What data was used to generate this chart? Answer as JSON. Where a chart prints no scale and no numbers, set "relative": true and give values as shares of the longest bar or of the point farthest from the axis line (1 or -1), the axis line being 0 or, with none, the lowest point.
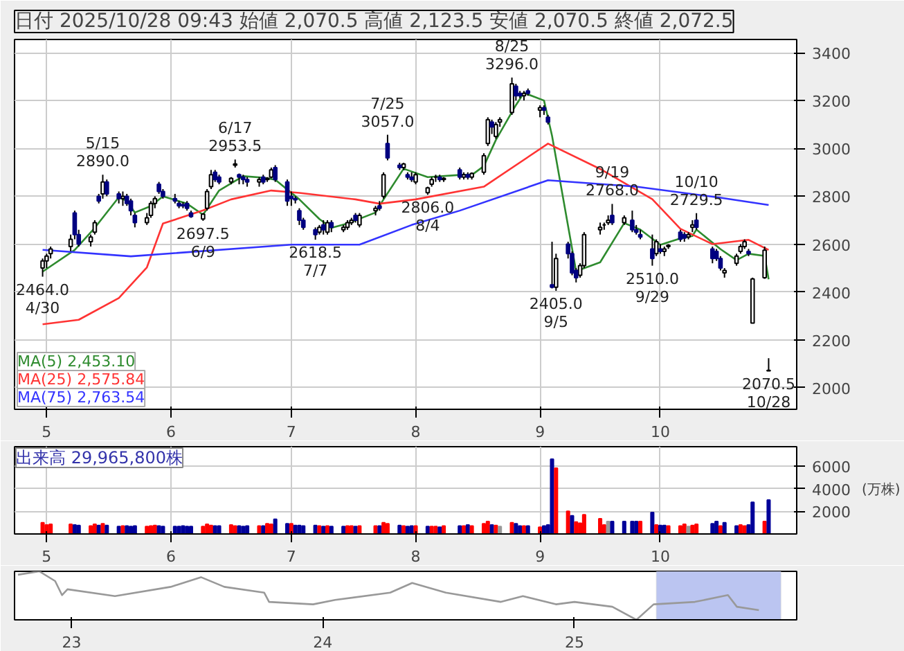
{
  "chart_data": [
    {
      "type": "candlestick",
      "title": "日付 2025/10/28 09:43 始値 2,070.5 高値 2,123.5 安値 2,070.5 終値 2,072.5",
      "x": [
        "2025-04-30",
        "2025-05-01",
        "2025-05-02",
        "2025-05-07",
        "2025-05-08",
        "2025-05-09",
        "2025-05-12",
        "2025-05-13",
        "2025-05-14",
        "2025-05-15",
        "2025-05-16",
        "2025-05-19",
        "2025-05-20",
        "2025-05-21",
        "2025-05-22",
        "2025-05-23",
        "2025-05-26",
        "2025-05-27",
        "2025-05-28",
        "2025-05-29",
        "2025-05-30",
        "2025-06-02",
        "2025-06-03",
        "2025-06-04",
        "2025-06-05",
        "2025-06-06",
        "2025-06-09",
        "2025-06-10",
        "2025-06-11",
        "2025-06-12",
        "2025-06-13",
        "2025-06-16",
        "2025-06-17",
        "2025-06-18",
        "2025-06-19",
        "2025-06-20",
        "2025-06-23",
        "2025-06-24",
        "2025-06-25",
        "2025-06-26",
        "2025-06-27",
        "2025-06-30",
        "2025-07-01",
        "2025-07-02",
        "2025-07-03",
        "2025-07-04",
        "2025-07-07",
        "2025-07-08",
        "2025-07-09",
        "2025-07-10",
        "2025-07-11",
        "2025-07-14",
        "2025-07-15",
        "2025-07-16",
        "2025-07-17",
        "2025-07-18",
        "2025-07-22",
        "2025-07-23",
        "2025-07-24",
        "2025-07-25",
        "2025-07-28",
        "2025-07-29",
        "2025-07-30",
        "2025-07-31",
        "2025-08-01",
        "2025-08-04",
        "2025-08-05",
        "2025-08-06",
        "2025-08-07",
        "2025-08-08",
        "2025-08-12",
        "2025-08-13",
        "2025-08-14",
        "2025-08-15",
        "2025-08-18",
        "2025-08-19",
        "2025-08-20",
        "2025-08-21",
        "2025-08-22",
        "2025-08-25",
        "2025-08-26",
        "2025-08-27",
        "2025-08-28",
        "2025-08-29",
        "2025-09-01",
        "2025-09-02",
        "2025-09-03",
        "2025-09-04",
        "2025-09-05",
        "2025-09-08",
        "2025-09-09",
        "2025-09-10",
        "2025-09-11",
        "2025-09-12",
        "2025-09-16",
        "2025-09-17",
        "2025-09-18",
        "2025-09-19",
        "2025-09-22",
        "2025-09-24",
        "2025-09-25",
        "2025-09-26",
        "2025-09-29",
        "2025-09-30",
        "2025-10-01",
        "2025-10-02",
        "2025-10-03",
        "2025-10-06",
        "2025-10-07",
        "2025-10-08",
        "2025-10-09",
        "2025-10-10",
        "2025-10-14",
        "2025-10-15",
        "2025-10-16",
        "2025-10-17",
        "2025-10-20",
        "2025-10-21",
        "2025-10-22",
        "2025-10-23",
        "2025-10-24",
        "2025-10-27",
        "2025-10-28"
      ],
      "ohlc": [
        [
          2500,
          2540,
          2464,
          2530
        ],
        [
          2530,
          2560,
          2500,
          2550
        ],
        [
          2560,
          2590,
          2540,
          2580
        ],
        [
          2590,
          2640,
          2570,
          2620
        ],
        [
          2730,
          2740,
          2620,
          2640
        ],
        [
          2640,
          2660,
          2590,
          2600
        ],
        [
          2610,
          2640,
          2590,
          2630
        ],
        [
          2650,
          2700,
          2640,
          2690
        ],
        [
          2800,
          2810,
          2770,
          2780
        ],
        [
          2810,
          2890,
          2790,
          2860
        ],
        [
          2860,
          2870,
          2800,
          2810
        ],
        [
          2810,
          2820,
          2770,
          2790
        ],
        [
          2790,
          2820,
          2760,
          2800
        ],
        [
          2800,
          2810,
          2760,
          2770
        ],
        [
          2780,
          2790,
          2720,
          2740
        ],
        [
          2720,
          2730,
          2670,
          2690
        ],
        [
          2690,
          2730,
          2680,
          2710
        ],
        [
          2720,
          2780,
          2710,
          2770
        ],
        [
          2770,
          2800,
          2750,
          2790
        ],
        [
          2850,
          2860,
          2810,
          2820
        ],
        [
          2820,
          2830,
          2790,
          2800
        ],
        [
          2790,
          2810,
          2770,
          2780
        ],
        [
          2770,
          2780,
          2750,
          2760
        ],
        [
          2765,
          2775,
          2750,
          2760
        ],
        [
          2770,
          2780,
          2740,
          2750
        ],
        [
          2730,
          2740,
          2710,
          2715
        ],
        [
          2705,
          2730,
          2697.5,
          2725
        ],
        [
          2750,
          2830,
          2740,
          2820
        ],
        [
          2840,
          2910,
          2830,
          2890
        ],
        [
          2900,
          2910,
          2860,
          2870
        ],
        [
          2880,
          2890,
          2850,
          2860
        ],
        [
          2860,
          2880,
          2850,
          2875
        ],
        [
          2930,
          2953.5,
          2920,
          2935
        ],
        [
          2890,
          2895,
          2850,
          2880
        ],
        [
          2880,
          2890,
          2850,
          2870
        ],
        [
          2870,
          2880,
          2840,
          2860
        ],
        [
          2860,
          2880,
          2840,
          2870
        ],
        [
          2880,
          2890,
          2850,
          2860
        ],
        [
          2870,
          2880,
          2860,
          2875
        ],
        [
          2880,
          2920,
          2875,
          2910
        ],
        [
          2920,
          2930,
          2860,
          2870
        ],
        [
          2860,
          2870,
          2760,
          2780
        ],
        [
          2800,
          2820,
          2760,
          2790
        ],
        [
          2790,
          2800,
          2770,
          2785
        ],
        [
          2740,
          2750,
          2680,
          2700
        ],
        [
          2700,
          2710,
          2660,
          2670
        ],
        [
          2660,
          2670,
          2618.5,
          2640
        ],
        [
          2650,
          2680,
          2640,
          2670
        ],
        [
          2680,
          2700,
          2640,
          2660
        ],
        [
          2650,
          2700,
          2640,
          2690
        ],
        [
          2690,
          2700,
          2650,
          2670
        ],
        [
          2660,
          2680,
          2650,
          2670
        ],
        [
          2670,
          2700,
          2660,
          2690
        ],
        [
          2690,
          2710,
          2680,
          2700
        ],
        [
          2720,
          2730,
          2690,
          2700
        ],
        [
          2680,
          2730,
          2670,
          2720
        ],
        [
          2740,
          2760,
          2720,
          2750
        ],
        [
          2760,
          2780,
          2740,
          2750
        ],
        [
          2800,
          2900,
          2790,
          2890
        ],
        [
          3020,
          3057,
          2950,
          2960
        ],
        [
          2930,
          2940,
          2910,
          2920
        ],
        [
          2920,
          2940,
          2910,
          2935
        ],
        [
          2890,
          2900,
          2870,
          2880
        ],
        [
          2880,
          2900,
          2860,
          2870
        ],
        [
          2860,
          2900,
          2850,
          2890
        ],
        [
          2815,
          2840,
          2806,
          2835
        ],
        [
          2850,
          2880,
          2840,
          2870
        ],
        [
          2880,
          2890,
          2860,
          2880
        ],
        [
          2880,
          2890,
          2860,
          2870
        ],
        [
          2870,
          2880,
          2860,
          2875
        ],
        [
          2910,
          2920,
          2870,
          2880
        ],
        [
          2880,
          2900,
          2870,
          2890
        ],
        [
          2890,
          2900,
          2870,
          2880
        ],
        [
          2880,
          2900,
          2870,
          2895
        ],
        [
          2900,
          2980,
          2890,
          2970
        ],
        [
          3020,
          3130,
          3010,
          3120
        ],
        [
          3110,
          3120,
          3060,
          3090
        ],
        [
          3050,
          3110,
          3040,
          3100
        ],
        [
          3110,
          3130,
          3090,
          3120
        ],
        [
          3150,
          3296,
          3140,
          3270
        ],
        [
          3260,
          3270,
          3200,
          3220
        ],
        [
          3230,
          3240,
          3210,
          3220
        ],
        [
          3220,
          3240,
          3200,
          3230
        ],
        [
          3240,
          3250,
          3220,
          3230
        ],
        [
          3160,
          3180,
          3130,
          3170
        ],
        [
          3170,
          3180,
          3140,
          3160
        ],
        [
          3130,
          3140,
          3100,
          3110
        ],
        [
          2430,
          2610,
          2415,
          2420
        ],
        [
          2420,
          2560,
          2405,
          2540
        ],
        [
          2600,
          2610,
          2540,
          2560
        ],
        [
          2560,
          2570,
          2470,
          2480
        ],
        [
          2490,
          2500,
          2440,
          2460
        ],
        [
          2470,
          2520,
          2460,
          2510
        ],
        [
          2510,
          2650,
          2500,
          2640
        ],
        [
          2660,
          2690,
          2640,
          2670
        ],
        [
          2680,
          2690,
          2660,
          2680
        ],
        [
          2690,
          2720,
          2680,
          2700
        ],
        [
          2720,
          2768,
          2680,
          2690
        ],
        [
          2690,
          2720,
          2680,
          2710
        ],
        [
          2700,
          2740,
          2650,
          2660
        ],
        [
          2660,
          2680,
          2640,
          2650
        ],
        [
          2640,
          2660,
          2620,
          2630
        ],
        [
          2580,
          2640,
          2510,
          2540
        ],
        [
          2560,
          2620,
          2550,
          2610
        ],
        [
          2580,
          2600,
          2560,
          2570
        ],
        [
          2570,
          2590,
          2550,
          2580
        ],
        [
          2590,
          2600,
          2580,
          2595
        ],
        [
          2650,
          2660,
          2610,
          2620
        ],
        [
          2640,
          2650,
          2610,
          2625
        ],
        [
          2630,
          2650,
          2620,
          2640
        ],
        [
          2670,
          2700,
          2650,
          2680
        ],
        [
          2700,
          2729.5,
          2660,
          2670
        ],
        [
          2580,
          2590,
          2520,
          2540
        ],
        [
          2570,
          2580,
          2530,
          2540
        ],
        [
          2540,
          2550,
          2490,
          2500
        ],
        [
          2480,
          2500,
          2460,
          2490
        ],
        [
          2520,
          2560,
          2510,
          2550
        ],
        [
          2570,
          2600,
          2560,
          2590
        ],
        [
          2590,
          2620,
          2580,
          2610
        ],
        [
          2570,
          2580,
          2550,
          2560
        ],
        [
          2270,
          2460,
          2270,
          2455
        ],
        [
          2460,
          2590,
          2455,
          2575
        ],
        [
          2070.5,
          2123.5,
          2070.5,
          2072.5
        ]
      ],
      "series": [
        {
          "name": "MA(5) 2,453.10",
          "color": "#2e8b2e",
          "type": "line",
          "x": [
            "2025-04-30",
            "2025-05-08",
            "2025-05-13",
            "2025-05-19",
            "2025-05-21",
            "2025-05-23",
            "2025-05-27",
            "2025-05-30",
            "2025-06-05",
            "2025-06-09",
            "2025-06-13",
            "2025-06-19",
            "2025-06-24",
            "2025-06-27",
            "2025-07-03",
            "2025-07-08",
            "2025-07-11",
            "2025-07-15",
            "2025-07-22",
            "2025-07-24",
            "2025-07-29",
            "2025-08-04",
            "2025-08-12",
            "2025-08-15",
            "2025-08-18",
            "2025-08-21",
            "2025-08-26",
            "2025-08-28",
            "2025-09-02",
            "2025-09-04",
            "2025-09-10",
            "2025-09-16",
            "2025-09-22",
            "2025-09-26",
            "2025-10-01",
            "2025-10-06",
            "2025-10-09",
            "2025-10-10",
            "2025-10-16",
            "2025-10-20",
            "2025-10-23",
            "2025-10-27",
            "2025-10-28"
          ],
          "values": [
            2485,
            2576,
            2668,
            2796,
            2781,
            2732,
            2759,
            2800,
            2769,
            2723,
            2824,
            2884,
            2878,
            2869,
            2787,
            2705,
            2668,
            2686,
            2732,
            2787,
            2915,
            2880,
            2889,
            2889,
            2926,
            3035,
            3181,
            3232,
            3200,
            3053,
            2487,
            2524,
            2688,
            2661,
            2597,
            2624,
            2634,
            2661,
            2579,
            2533,
            2560,
            2551,
            2453.1
          ]
        },
        {
          "name": "MA(25) 2,575.84",
          "color": "#ff3333",
          "type": "line",
          "x": [
            "2025-04-30",
            "2025-05-09",
            "2025-05-19",
            "2025-05-26",
            "2025-05-30",
            "2025-06-09",
            "2025-06-16",
            "2025-06-26",
            "2025-07-03",
            "2025-07-17",
            "2025-07-23",
            "2025-08-01",
            "2025-08-18",
            "2025-09-03",
            "2025-09-16",
            "2025-09-29",
            "2025-10-06",
            "2025-10-14",
            "2025-10-23",
            "2025-10-28"
          ],
          "values": [
            2265,
            2284,
            2375,
            2503,
            2686,
            2741,
            2787,
            2824,
            2814,
            2787,
            2769,
            2787,
            2840,
            3020,
            2914,
            2788,
            2664,
            2600,
            2618,
            2575.84
          ]
        },
        {
          "name": "MA(75) 2,763.54",
          "color": "#3333ff",
          "type": "line",
          "x": [
            "2025-04-30",
            "2025-05-22",
            "2025-07-01",
            "2025-07-18",
            "2025-07-31",
            "2025-08-12",
            "2025-09-03",
            "2025-09-25",
            "2025-10-16",
            "2025-10-28"
          ],
          "values": [
            2576,
            2549,
            2598,
            2598,
            2680,
            2740,
            2867,
            2840,
            2794,
            2763.54
          ]
        }
      ],
      "annotations": [
        {
          "text": "5/15\n2890.0",
          "x": "2025-05-15",
          "y": 2890
        },
        {
          "text": "6/17\n2953.5",
          "x": "2025-06-17",
          "y": 2953.5
        },
        {
          "text": "7/25\n3057.0",
          "x": "2025-07-25",
          "y": 3057
        },
        {
          "text": "8/25\n3296.0",
          "x": "2025-08-25",
          "y": 3296
        },
        {
          "text": "9/19\n2768.0",
          "x": "2025-09-19",
          "y": 2768
        },
        {
          "text": "10/10\n2729.5",
          "x": "2025-10-10",
          "y": 2729.5
        },
        {
          "text": "2464.0\n4/30",
          "x": "2025-04-30",
          "y": 2464
        },
        {
          "text": "2697.5\n6/9",
          "x": "2025-06-09",
          "y": 2697.5
        },
        {
          "text": "2618.5\n7/7",
          "x": "2025-07-07",
          "y": 2618.5
        },
        {
          "text": "2806.0\n8/4",
          "x": "2025-08-04",
          "y": 2806
        },
        {
          "text": "2405.0\n9/5",
          "x": "2025-09-05",
          "y": 2405
        },
        {
          "text": "2510.0\n9/29",
          "x": "2025-09-29",
          "y": 2510
        },
        {
          "text": "2070.5\n10/28",
          "x": "2025-10-28",
          "y": 2070.5
        }
      ],
      "xlim": [
        "2025-04-23",
        "2025-11-04"
      ],
      "xticks": [
        {
          "value": "2025-05-01",
          "label": "5"
        },
        {
          "value": "2025-06-01",
          "label": "6"
        },
        {
          "value": "2025-07-01",
          "label": "7"
        },
        {
          "value": "2025-08-01",
          "label": "8"
        },
        {
          "value": "2025-09-01",
          "label": "9"
        },
        {
          "value": "2025-10-01",
          "label": "10"
        }
      ],
      "ylim": [
        1910,
        3455
      ],
      "yticks": [
        2000,
        2200,
        2400,
        2600,
        2800,
        3000,
        3200,
        3400
      ],
      "grid": true,
      "legend": "bottom left"
    },
    {
      "type": "bar",
      "title": "出来高 29,965,800株",
      "ylabel": "(万株)",
      "x": [
        "2025-04-30",
        "2025-05-01",
        "2025-05-02",
        "2025-05-07",
        "2025-05-08",
        "2025-05-09",
        "2025-05-12",
        "2025-05-13",
        "2025-05-14",
        "2025-05-15",
        "2025-05-16",
        "2025-05-19",
        "2025-05-20",
        "2025-05-21",
        "2025-05-22",
        "2025-05-23",
        "2025-05-26",
        "2025-05-27",
        "2025-05-28",
        "2025-05-29",
        "2025-05-30",
        "2025-06-02",
        "2025-06-03",
        "2025-06-04",
        "2025-06-05",
        "2025-06-06",
        "2025-06-09",
        "2025-06-10",
        "2025-06-11",
        "2025-06-12",
        "2025-06-13",
        "2025-06-16",
        "2025-06-17",
        "2025-06-18",
        "2025-06-19",
        "2025-06-20",
        "2025-06-23",
        "2025-06-24",
        "2025-06-25",
        "2025-06-26",
        "2025-06-27",
        "2025-06-30",
        "2025-07-01",
        "2025-07-02",
        "2025-07-03",
        "2025-07-04",
        "2025-07-07",
        "2025-07-08",
        "2025-07-09",
        "2025-07-10",
        "2025-07-11",
        "2025-07-14",
        "2025-07-15",
        "2025-07-16",
        "2025-07-17",
        "2025-07-18",
        "2025-07-22",
        "2025-07-23",
        "2025-07-24",
        "2025-07-25",
        "2025-07-28",
        "2025-07-29",
        "2025-07-30",
        "2025-07-31",
        "2025-08-01",
        "2025-08-04",
        "2025-08-05",
        "2025-08-06",
        "2025-08-07",
        "2025-08-08",
        "2025-08-12",
        "2025-08-13",
        "2025-08-14",
        "2025-08-15",
        "2025-08-18",
        "2025-08-19",
        "2025-08-20",
        "2025-08-21",
        "2025-08-22",
        "2025-08-25",
        "2025-08-26",
        "2025-08-27",
        "2025-08-28",
        "2025-08-29",
        "2025-09-01",
        "2025-09-02",
        "2025-09-03",
        "2025-09-04",
        "2025-09-05",
        "2025-09-08",
        "2025-09-09",
        "2025-09-10",
        "2025-09-11",
        "2025-09-12",
        "2025-09-16",
        "2025-09-17",
        "2025-09-18",
        "2025-09-19",
        "2025-09-22",
        "2025-09-24",
        "2025-09-25",
        "2025-09-26",
        "2025-09-29",
        "2025-09-30",
        "2025-10-01",
        "2025-10-02",
        "2025-10-03",
        "2025-10-06",
        "2025-10-07",
        "2025-10-08",
        "2025-10-09",
        "2025-10-10",
        "2025-10-14",
        "2025-10-15",
        "2025-10-16",
        "2025-10-17",
        "2025-10-20",
        "2025-10-21",
        "2025-10-22",
        "2025-10-23",
        "2025-10-24",
        "2025-10-27",
        "2025-10-28"
      ],
      "values": [
        1000,
        800,
        850,
        850,
        800,
        750,
        700,
        850,
        750,
        900,
        750,
        650,
        700,
        700,
        650,
        700,
        650,
        700,
        750,
        700,
        650,
        650,
        650,
        700,
        650,
        650,
        650,
        850,
        750,
        700,
        700,
        800,
        700,
        700,
        650,
        700,
        700,
        700,
        900,
        850,
        1300,
        900,
        900,
        750,
        750,
        700,
        750,
        700,
        650,
        700,
        650,
        650,
        700,
        700,
        650,
        700,
        700,
        700,
        1000,
        900,
        750,
        700,
        650,
        700,
        700,
        650,
        650,
        650,
        600,
        700,
        700,
        700,
        800,
        700,
        900,
        1100,
        800,
        750,
        650,
        1000,
        900,
        700,
        700,
        700,
        600,
        700,
        800,
        6600,
        5800,
        2000,
        1600,
        1050,
        950,
        1700,
        1350,
        800,
        1100,
        1100,
        1100,
        1100,
        1100,
        1100,
        1900,
        800,
        750,
        750,
        700,
        700,
        850,
        650,
        750,
        850,
        900,
        1100,
        700,
        1000,
        700,
        800,
        700,
        800,
        2800,
        1100,
        3000
      ],
      "colors": [
        "#ff0000",
        "#ff0000",
        "#ff0000",
        "#ff0000",
        "#000099",
        "#000099",
        "#ff0000",
        "#ff0000",
        "#000099",
        "#ff0000",
        "#000099",
        "#000099",
        "#ff0000",
        "#000099",
        "#000099",
        "#000099",
        "#ff0000",
        "#ff0000",
        "#ff0000",
        "#000099",
        "#000099",
        "#000099",
        "#000099",
        "#000099",
        "#000099",
        "#000099",
        "#ff0000",
        "#ff0000",
        "#ff0000",
        "#000099",
        "#000099",
        "#ff0000",
        "#ff0000",
        "#000099",
        "#000099",
        "#000099",
        "#ff0000",
        "#000099",
        "#ff0000",
        "#ff0000",
        "#000099",
        "#000099",
        "#ff0000",
        "#000099",
        "#000099",
        "#000099",
        "#000099",
        "#ff0000",
        "#000099",
        "#ff0000",
        "#000099",
        "#000099",
        "#ff0000",
        "#ff0000",
        "#000099",
        "#ff0000",
        "#ff0000",
        "#000099",
        "#ff0000",
        "#ff0000",
        "#000099",
        "#ff0000",
        "#000099",
        "#000099",
        "#ff0000",
        "#000099",
        "#ff0000",
        "#ff0000",
        "#000099",
        "#ff0000",
        "#000099",
        "#ff0000",
        "#000099",
        "#ff0000",
        "#ff0000",
        "#ff0000",
        "#000099",
        "#ff0000",
        "#999999",
        "#ff0000",
        "#000099",
        "#000099",
        "#ff0000",
        "#000099",
        "#ff0000",
        "#000099",
        "#000099",
        "#000099",
        "#ff0000",
        "#ff0000",
        "#000099",
        "#ff0000",
        "#ff0000",
        "#ff0000",
        "#ff0000",
        "#ff0000",
        "#999999",
        "#000099",
        "#000099",
        "#000099",
        "#000099",
        "#ff0000",
        "#000099",
        "#ff0000",
        "#000099",
        "#000099",
        "#ff0000",
        "#ff0000",
        "#ff0000",
        "#999999",
        "#ff0000",
        "#ff0000",
        "#000099",
        "#000099",
        "#ff0000",
        "#000099",
        "#000099",
        "#ff0000",
        "#ff0000",
        "#000099",
        "#000099",
        "#ff0000",
        "#000099"
      ],
      "xlim": [
        "2025-04-23",
        "2025-11-04"
      ],
      "xticks": [
        {
          "value": "2025-05-01",
          "label": "5"
        },
        {
          "value": "2025-06-01",
          "label": "6"
        },
        {
          "value": "2025-07-01",
          "label": "7"
        },
        {
          "value": "2025-08-01",
          "label": "8"
        },
        {
          "value": "2025-09-01",
          "label": "9"
        },
        {
          "value": "2025-10-01",
          "label": "10"
        }
      ],
      "ylim": [
        0,
        7700
      ],
      "yticks": [
        2000,
        4000,
        6000
      ],
      "grid": true
    },
    {
      "type": "line",
      "relative": true,
      "tick_labels": "x",
      "x": [
        "2022-10-15",
        "2022-11-15",
        "2022-12-08",
        "2022-12-18",
        "2022-12-26",
        "2023-03-05",
        "2023-05-25",
        "2023-07-08",
        "2023-08-11",
        "2023-10-08",
        "2023-10-15",
        "2023-12-18",
        "2024-01-19",
        "2024-04-08",
        "2024-05-10",
        "2024-06-28",
        "2024-09-16",
        "2024-10-18",
        "2024-12-05",
        "2025-01-01",
        "2025-02-25",
        "2025-04-01",
        "2025-04-26",
        "2025-06-25",
        "2025-08-12",
        "2025-08-25",
        "2025-09-26"
      ],
      "series": [
        {
          "color": "#999999",
          "values": [
            0.93,
            1.0,
            0.8,
            0.51,
            0.63,
            0.49,
            0.68,
            0.88,
            0.68,
            0.56,
            0.37,
            0.32,
            0.41,
            0.56,
            0.76,
            0.56,
            0.37,
            0.49,
            0.32,
            0.37,
            0.27,
            0.0,
            0.32,
            0.37,
            0.51,
            0.27,
            0.2
          ]
        }
      ],
      "xlim": [
        "2022-10-10",
        "2025-11-20"
      ],
      "xticks": [
        {
          "value": "2023-01-01",
          "label": "23"
        },
        {
          "value": "2024-01-01",
          "label": "24"
        },
        {
          "value": "2025-01-01",
          "label": "25"
        }
      ],
      "bands": [
        {
          "axis": "x",
          "from": "2025-04-30",
          "to": "2025-10-28",
          "color": "#b4bff0"
        }
      ]
    }
  ]
}
